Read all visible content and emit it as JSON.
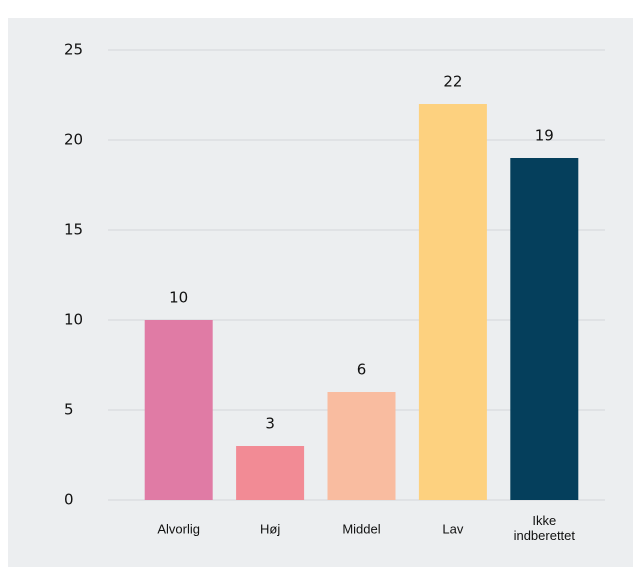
{
  "chart_data": {
    "type": "bar",
    "categories": [
      "Alvorlig",
      "Høj",
      "Middel",
      "Lav",
      "Ikke indberettet"
    ],
    "values": [
      10,
      3,
      6,
      22,
      19
    ],
    "colors": [
      "#e07ba5",
      "#f28b95",
      "#f9bca0",
      "#fdd17f",
      "#053f5c"
    ],
    "ylim": [
      0,
      25
    ],
    "yticks": [
      0,
      5,
      10,
      15,
      20,
      25
    ],
    "grid": true
  }
}
